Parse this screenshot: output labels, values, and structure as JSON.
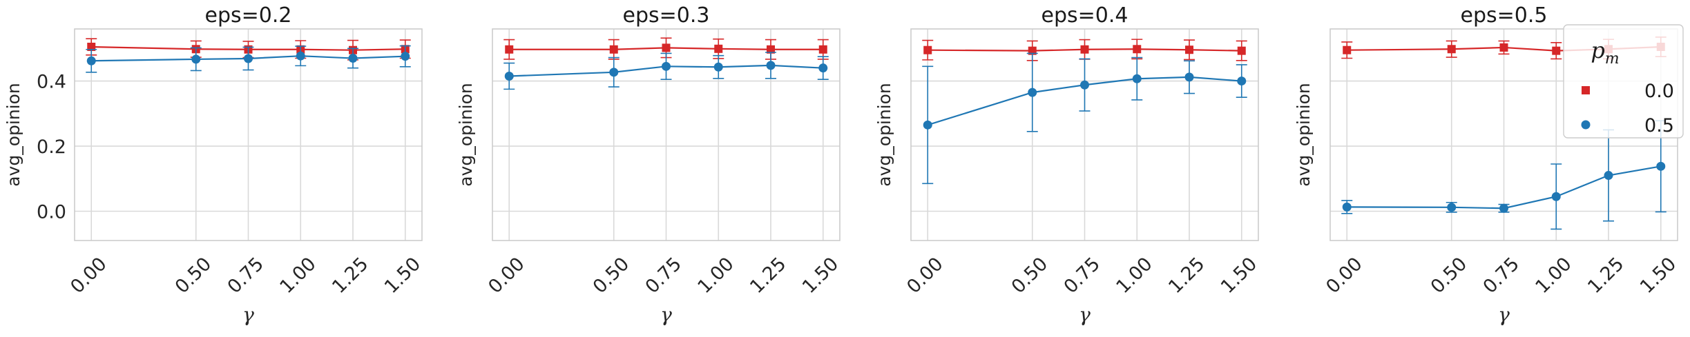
{
  "chart_data": [
    {
      "type": "line",
      "title": "eps=0.2",
      "xlabel": "γ",
      "ylabel": "avg_opinion",
      "x": [
        0.0,
        0.5,
        0.75,
        1.0,
        1.25,
        1.5
      ],
      "x_tick_labels": [
        "0.00",
        "0.50",
        "0.75",
        "1.00",
        "1.25",
        "1.50"
      ],
      "ylim": [
        -0.09,
        0.56
      ],
      "y_ticks": [
        0.0,
        0.2,
        0.4
      ],
      "y_tick_labels": [
        "0.0",
        "0.2",
        "0.4"
      ],
      "grid": true,
      "series": [
        {
          "name": "0.0",
          "color": "#d62728",
          "marker": "square",
          "values": [
            0.505,
            0.498,
            0.497,
            0.497,
            0.495,
            0.498
          ],
          "err": [
            0.025,
            0.025,
            0.025,
            0.027,
            0.03,
            0.028
          ]
        },
        {
          "name": "0.5",
          "color": "#1f77b4",
          "marker": "circle",
          "values": [
            0.462,
            0.467,
            0.469,
            0.477,
            0.47,
            0.476
          ],
          "err": [
            0.035,
            0.035,
            0.035,
            0.03,
            0.03,
            0.032
          ]
        }
      ]
    },
    {
      "type": "line",
      "title": "eps=0.3",
      "xlabel": "γ",
      "ylabel": "avg_opinion",
      "x": [
        0.0,
        0.5,
        0.75,
        1.0,
        1.25,
        1.5
      ],
      "x_tick_labels": [
        "0.00",
        "0.50",
        "0.75",
        "1.00",
        "1.25",
        "1.50"
      ],
      "ylim": [
        -0.09,
        0.56
      ],
      "y_ticks": [
        0.0,
        0.2,
        0.4
      ],
      "y_tick_labels": [],
      "grid": true,
      "series": [
        {
          "name": "0.0",
          "color": "#d62728",
          "marker": "square",
          "values": [
            0.497,
            0.497,
            0.502,
            0.499,
            0.497,
            0.497
          ],
          "err": [
            0.03,
            0.03,
            0.03,
            0.03,
            0.03,
            0.03
          ]
        },
        {
          "name": "0.5",
          "color": "#1f77b4",
          "marker": "circle",
          "values": [
            0.415,
            0.427,
            0.445,
            0.443,
            0.448,
            0.44
          ],
          "err": [
            0.04,
            0.045,
            0.04,
            0.035,
            0.04,
            0.035
          ]
        }
      ]
    },
    {
      "type": "line",
      "title": "eps=0.4",
      "xlabel": "γ",
      "ylabel": "avg_opinion",
      "x": [
        0.0,
        0.5,
        0.75,
        1.0,
        1.25,
        1.5
      ],
      "x_tick_labels": [
        "0.00",
        "0.50",
        "0.75",
        "1.00",
        "1.25",
        "1.50"
      ],
      "ylim": [
        -0.09,
        0.56
      ],
      "y_ticks": [
        0.0,
        0.2,
        0.4
      ],
      "y_tick_labels": [],
      "grid": true,
      "series": [
        {
          "name": "0.0",
          "color": "#d62728",
          "marker": "square",
          "values": [
            0.495,
            0.493,
            0.497,
            0.498,
            0.496,
            0.493
          ],
          "err": [
            0.03,
            0.03,
            0.03,
            0.03,
            0.03,
            0.03
          ]
        },
        {
          "name": "0.5",
          "color": "#1f77b4",
          "marker": "circle",
          "values": [
            0.265,
            0.365,
            0.388,
            0.407,
            0.412,
            0.4
          ],
          "err": [
            0.18,
            0.12,
            0.08,
            0.065,
            0.05,
            0.05
          ]
        }
      ]
    },
    {
      "type": "line",
      "title": "eps=0.5",
      "xlabel": "γ",
      "ylabel": "avg_opinion",
      "x": [
        0.0,
        0.5,
        0.75,
        1.0,
        1.25,
        1.5
      ],
      "x_tick_labels": [
        "0.00",
        "0.50",
        "0.75",
        "1.00",
        "1.25",
        "1.50"
      ],
      "ylim": [
        -0.09,
        0.56
      ],
      "y_ticks": [
        0.0,
        0.2,
        0.4
      ],
      "y_tick_labels": [],
      "grid": true,
      "legend": {
        "title": "p_m",
        "position": "top-right"
      },
      "series": [
        {
          "name": "0.0",
          "color": "#d62728",
          "marker": "square",
          "values": [
            0.495,
            0.498,
            0.503,
            0.493,
            0.498,
            0.505
          ],
          "err": [
            0.025,
            0.025,
            0.02,
            0.025,
            0.03,
            0.03
          ]
        },
        {
          "name": "0.5",
          "color": "#1f77b4",
          "marker": "circle",
          "values": [
            0.013,
            0.012,
            0.009,
            0.045,
            0.11,
            0.138
          ],
          "err": [
            0.02,
            0.015,
            0.012,
            0.1,
            0.14,
            0.14
          ]
        }
      ]
    }
  ],
  "legend": {
    "title_base": "p",
    "title_sub": "m",
    "items": [
      "0.0",
      "0.5"
    ]
  }
}
